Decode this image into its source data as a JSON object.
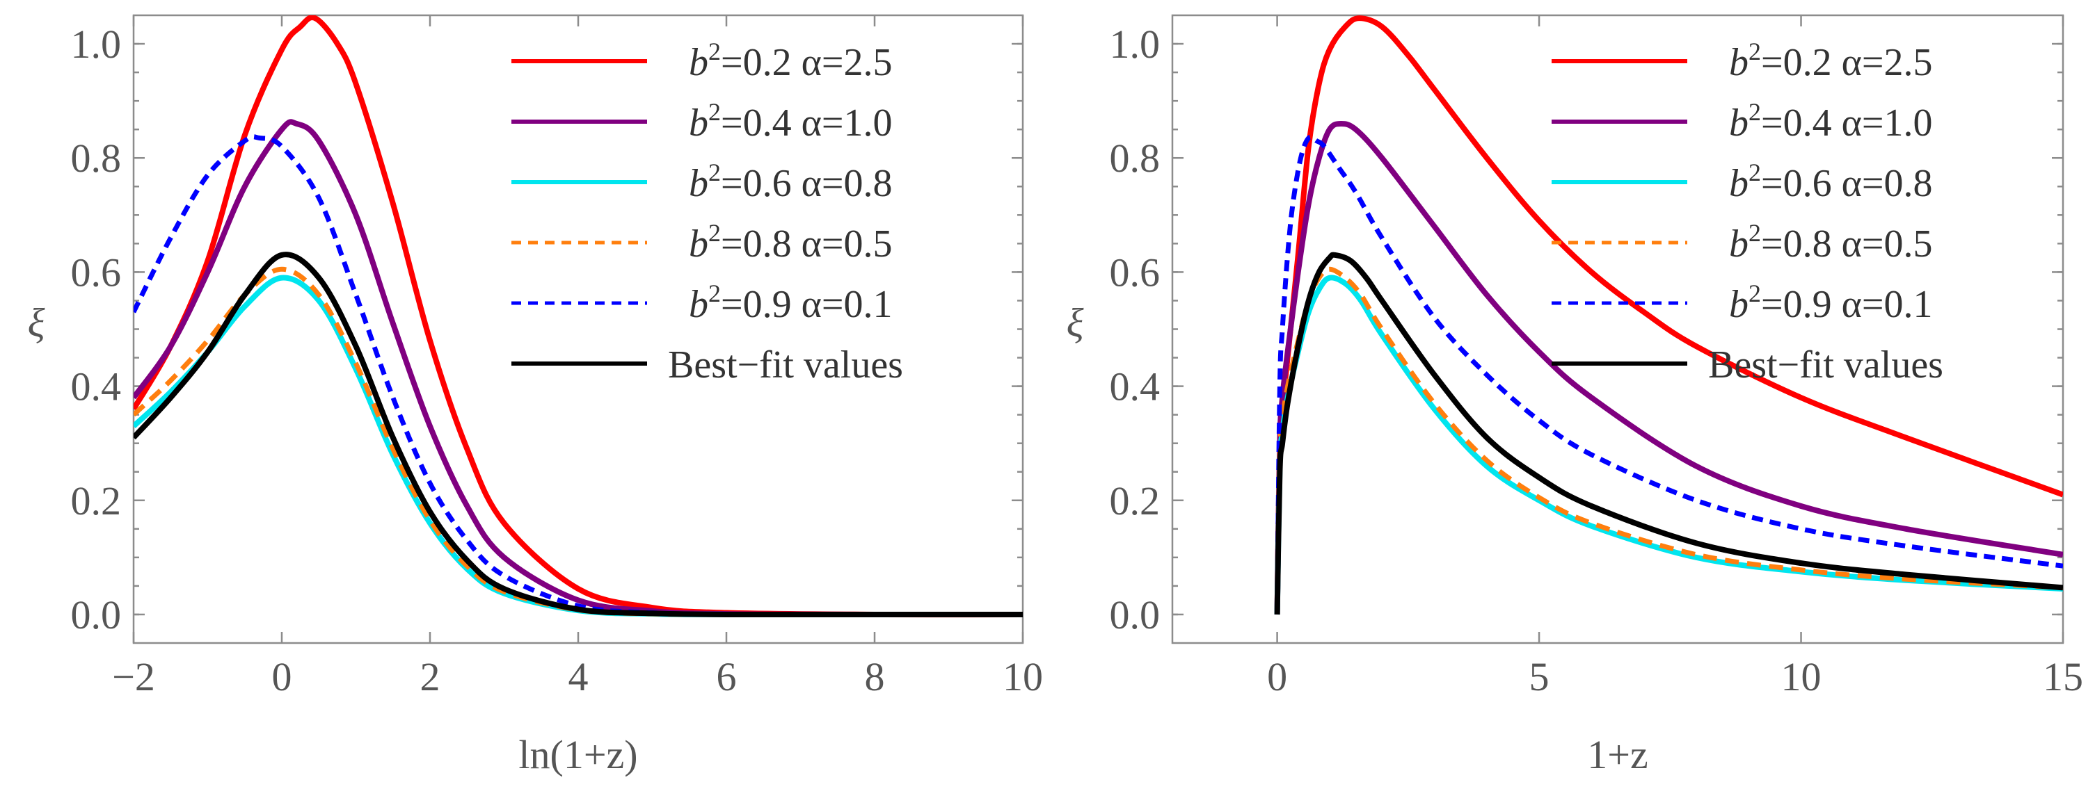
{
  "chart_data": [
    {
      "type": "line",
      "title": "",
      "xlabel": "ln(1+z)",
      "ylabel": "ξ",
      "xlim": [
        -2,
        10
      ],
      "ylim": [
        -0.05,
        1.05
      ],
      "xticks": [
        -2,
        0,
        2,
        4,
        6,
        8,
        10
      ],
      "xtick_labels": [
        "−2",
        "0",
        "2",
        "4",
        "6",
        "8",
        "10"
      ],
      "yticks": [
        0.0,
        0.2,
        0.4,
        0.6,
        0.8,
        1.0
      ],
      "ytick_labels": [
        "0.0",
        "0.2",
        "0.4",
        "0.6",
        "0.8",
        "1.0"
      ],
      "legend_position": "top-right",
      "series": [
        {
          "name": "b²=0.2  α=2.5",
          "label_main": "b",
          "label_sup": "2",
          "label_rest": "=0.2  α=2.5",
          "color": "#ff0000",
          "dash": "solid",
          "x": [
            -2,
            -1.5,
            -1,
            -0.5,
            0,
            0.25,
            0.45,
            0.75,
            1,
            1.5,
            2,
            2.5,
            3,
            4,
            5,
            6,
            8,
            10
          ],
          "y": [
            0.36,
            0.47,
            0.62,
            0.84,
            0.99,
            1.03,
            1.045,
            1.0,
            0.93,
            0.72,
            0.48,
            0.29,
            0.16,
            0.045,
            0.012,
            0.003,
            0.0,
            0.0
          ]
        },
        {
          "name": "b²=0.4  α=1.0",
          "label_main": "b",
          "label_sup": "2",
          "label_rest": "=0.4  α=1.0",
          "color": "#800080",
          "dash": "solid",
          "x": [
            -2,
            -1.5,
            -1,
            -0.5,
            0,
            0.2,
            0.5,
            1,
            1.5,
            2,
            2.5,
            3,
            4,
            5,
            6,
            8,
            10
          ],
          "y": [
            0.38,
            0.47,
            0.6,
            0.75,
            0.85,
            0.86,
            0.83,
            0.7,
            0.51,
            0.33,
            0.19,
            0.1,
            0.025,
            0.006,
            0.001,
            0.0,
            0.0
          ]
        },
        {
          "name": "b²=0.6  α=0.8",
          "label_main": "b",
          "label_sup": "2",
          "label_rest": "=0.6  α=0.8",
          "color": "#00e5ee",
          "dash": "solid",
          "x": [
            -2,
            -1.5,
            -1,
            -0.5,
            0,
            0.5,
            1,
            1.5,
            2,
            2.5,
            3,
            4,
            5,
            6,
            8,
            10
          ],
          "y": [
            0.33,
            0.39,
            0.46,
            0.54,
            0.59,
            0.55,
            0.43,
            0.28,
            0.16,
            0.08,
            0.037,
            0.007,
            0.001,
            0.0,
            0.0,
            0.0
          ]
        },
        {
          "name": "b²=0.8  α=0.5",
          "label_main": "b",
          "label_sup": "2",
          "label_rest": "=0.8  α=0.5",
          "color": "#ff7f0e",
          "dash": "dashed",
          "x": [
            -2,
            -1.5,
            -1,
            -0.5,
            0,
            0.5,
            1,
            1.5,
            2,
            2.5,
            3,
            4,
            5,
            6,
            8,
            10
          ],
          "y": [
            0.35,
            0.41,
            0.48,
            0.56,
            0.605,
            0.56,
            0.44,
            0.29,
            0.165,
            0.085,
            0.04,
            0.008,
            0.001,
            0.0,
            0.0,
            0.0
          ]
        },
        {
          "name": "b²=0.9  α=0.1",
          "label_main": "b",
          "label_sup": "2",
          "label_rest": "=0.9  α=0.1",
          "color": "#0000ff",
          "dash": "dashed",
          "x": [
            -2,
            -1.5,
            -1,
            -0.5,
            -0.3,
            0,
            0.5,
            1,
            1.5,
            2,
            2.5,
            3,
            4,
            5,
            6,
            8,
            10
          ],
          "y": [
            0.53,
            0.66,
            0.77,
            0.83,
            0.835,
            0.82,
            0.73,
            0.56,
            0.38,
            0.23,
            0.13,
            0.068,
            0.015,
            0.003,
            0.0,
            0.0,
            0.0
          ]
        },
        {
          "name": "Best−fit values",
          "label_main": "Best−fit values",
          "label_sup": "",
          "label_rest": "",
          "color": "#000000",
          "dash": "solid",
          "x": [
            -2,
            -1.5,
            -1,
            -0.5,
            0,
            0.5,
            1,
            1.5,
            2,
            2.5,
            3,
            4,
            5,
            6,
            8,
            10
          ],
          "y": [
            0.31,
            0.38,
            0.46,
            0.56,
            0.63,
            0.59,
            0.47,
            0.31,
            0.18,
            0.095,
            0.045,
            0.009,
            0.002,
            0.0,
            0.0,
            0.0
          ]
        }
      ]
    },
    {
      "type": "line",
      "title": "",
      "xlabel": "1+z",
      "ylabel": "ξ",
      "xlim": [
        -2,
        15
      ],
      "ylim": [
        -0.05,
        1.05
      ],
      "xticks": [
        0,
        5,
        10,
        15
      ],
      "xtick_labels": [
        "0",
        "5",
        "10",
        "15"
      ],
      "yticks": [
        0.0,
        0.2,
        0.4,
        0.6,
        0.8,
        1.0
      ],
      "ytick_labels": [
        "0.0",
        "0.2",
        "0.4",
        "0.6",
        "0.8",
        "1.0"
      ],
      "legend_position": "top-right",
      "series": [
        {
          "name": "b²=0.2  α=2.5",
          "label_main": "b",
          "label_sup": "2",
          "label_rest": "=0.2  α=2.5",
          "color": "#ff0000",
          "dash": "solid",
          "x": [
            0,
            0.05,
            0.1,
            0.2,
            0.4,
            0.6,
            0.8,
            1.0,
            1.3,
            1.57,
            2,
            2.5,
            3,
            4,
            5,
            6,
            7,
            8,
            10,
            12,
            15
          ],
          "y": [
            0.0,
            0.3,
            0.36,
            0.45,
            0.63,
            0.82,
            0.93,
            0.99,
            1.03,
            1.045,
            1.03,
            0.98,
            0.92,
            0.8,
            0.69,
            0.6,
            0.53,
            0.47,
            0.38,
            0.31,
            0.21
          ]
        },
        {
          "name": "b²=0.4  α=1.0",
          "label_main": "b",
          "label_sup": "2",
          "label_rest": "=0.4  α=1.0",
          "color": "#800080",
          "dash": "solid",
          "x": [
            0,
            0.05,
            0.1,
            0.2,
            0.4,
            0.6,
            0.8,
            1.0,
            1.22,
            1.5,
            2,
            3,
            4,
            5,
            6,
            8,
            10,
            12,
            15
          ],
          "y": [
            0.0,
            0.3,
            0.38,
            0.46,
            0.6,
            0.72,
            0.8,
            0.85,
            0.86,
            0.85,
            0.8,
            0.68,
            0.56,
            0.46,
            0.38,
            0.26,
            0.19,
            0.15,
            0.105
          ]
        },
        {
          "name": "b²=0.6  α=0.8",
          "label_main": "b",
          "label_sup": "2",
          "label_rest": "=0.6  α=0.8",
          "color": "#00e5ee",
          "dash": "solid",
          "x": [
            0,
            0.05,
            0.1,
            0.2,
            0.4,
            0.6,
            0.8,
            1.0,
            1.3,
            1.6,
            2,
            3,
            4,
            5,
            6,
            8,
            10,
            12,
            15
          ],
          "y": [
            0.0,
            0.26,
            0.32,
            0.38,
            0.46,
            0.53,
            0.57,
            0.59,
            0.58,
            0.55,
            0.49,
            0.36,
            0.26,
            0.2,
            0.155,
            0.1,
            0.075,
            0.06,
            0.045
          ]
        },
        {
          "name": "b²=0.8  α=0.5",
          "label_main": "b",
          "label_sup": "2",
          "label_rest": "=0.8  α=0.5",
          "color": "#ff7f0e",
          "dash": "dashed",
          "x": [
            0,
            0.05,
            0.1,
            0.2,
            0.4,
            0.6,
            0.8,
            1.0,
            1.3,
            1.6,
            2,
            3,
            4,
            5,
            6,
            8,
            10,
            12,
            15
          ],
          "y": [
            0.0,
            0.28,
            0.34,
            0.4,
            0.48,
            0.55,
            0.59,
            0.605,
            0.59,
            0.56,
            0.5,
            0.37,
            0.27,
            0.205,
            0.16,
            0.105,
            0.078,
            0.062,
            0.047
          ]
        },
        {
          "name": "b²=0.9  α=0.1",
          "label_main": "b",
          "label_sup": "2",
          "label_rest": "=0.9  α=0.1",
          "color": "#0000ff",
          "dash": "dashed",
          "x": [
            0,
            0.05,
            0.1,
            0.2,
            0.3,
            0.45,
            0.6,
            0.75,
            0.9,
            1.2,
            1.5,
            2,
            3,
            4,
            5,
            6,
            8,
            10,
            12,
            15
          ],
          "y": [
            0.0,
            0.4,
            0.5,
            0.63,
            0.72,
            0.8,
            0.835,
            0.83,
            0.82,
            0.78,
            0.74,
            0.66,
            0.52,
            0.42,
            0.34,
            0.28,
            0.2,
            0.15,
            0.12,
            0.085
          ]
        },
        {
          "name": "Best−fit values",
          "label_main": "Best−fit values",
          "label_sup": "",
          "label_rest": "",
          "color": "#000000",
          "dash": "solid",
          "x": [
            0,
            0.05,
            0.1,
            0.2,
            0.4,
            0.6,
            0.8,
            1.0,
            1.1,
            1.4,
            1.7,
            2,
            3,
            4,
            5,
            6,
            8,
            10,
            12,
            15
          ],
          "y": [
            0.0,
            0.25,
            0.3,
            0.37,
            0.47,
            0.55,
            0.6,
            0.625,
            0.63,
            0.62,
            0.59,
            0.55,
            0.42,
            0.31,
            0.24,
            0.19,
            0.125,
            0.09,
            0.07,
            0.047
          ]
        }
      ]
    }
  ]
}
